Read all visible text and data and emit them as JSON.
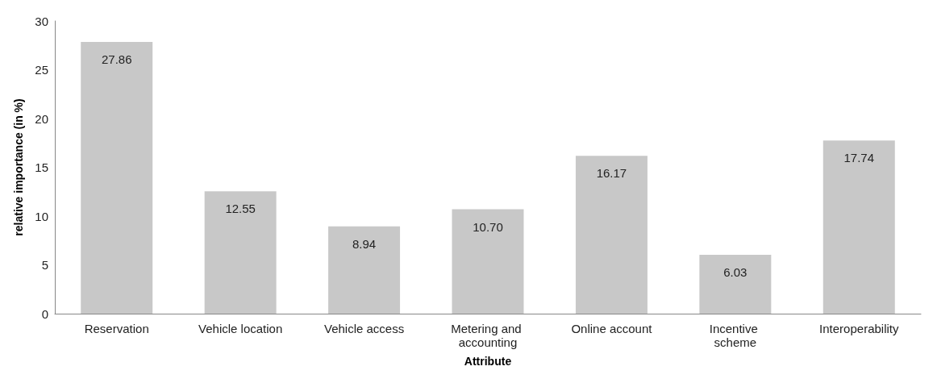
{
  "chart_data": {
    "type": "bar",
    "xlabel": "Attribute",
    "ylabel": "relative importance (in %)",
    "categories": [
      "Reservation",
      "Vehicle location",
      "Vehicle access",
      "Metering and accounting",
      "Online account",
      "Incentive scheme",
      "Interoperability"
    ],
    "values": [
      27.86,
      12.55,
      8.94,
      10.7,
      16.17,
      6.03,
      17.74
    ],
    "value_labels": [
      "27.86",
      "12.55",
      "8.94",
      "10.70",
      "16.17",
      "6.03",
      "17.74"
    ],
    "color": "#c8c8c8",
    "ylim": [
      0,
      30
    ],
    "yticks": [
      0,
      5,
      10,
      15,
      20,
      25,
      30
    ],
    "grid": false
  }
}
